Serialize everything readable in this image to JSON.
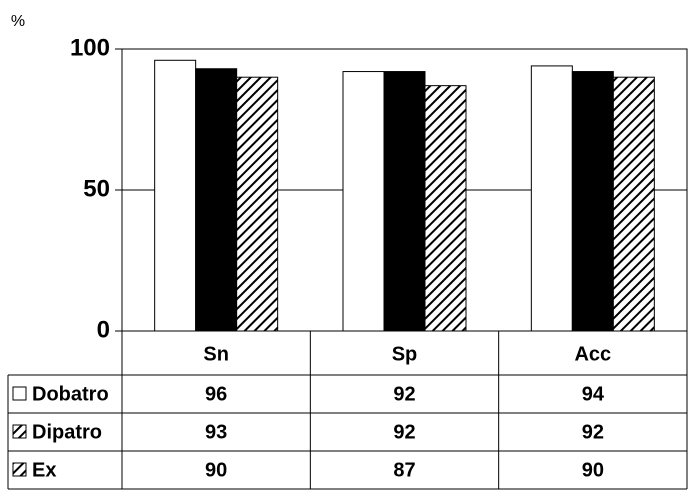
{
  "chart_data": {
    "type": "bar",
    "y_label": "%",
    "categories": [
      "Sn",
      "Sp",
      "Acc"
    ],
    "series": [
      {
        "name": "Dobatro",
        "color": "#ffffff",
        "values": [
          96,
          92,
          94
        ]
      },
      {
        "name": "Dipatro",
        "color": "#000000",
        "values": [
          93,
          92,
          92
        ]
      },
      {
        "name": "Ex",
        "color": "#000000",
        "pattern": "hatch",
        "values": [
          90,
          87,
          90
        ]
      }
    ],
    "ylim": [
      0,
      100
    ],
    "yticks": [
      0,
      50,
      100
    ],
    "grid": true
  }
}
